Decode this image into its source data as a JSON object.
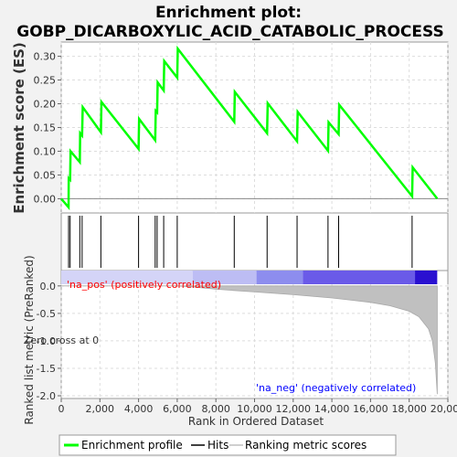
{
  "chart_data": {
    "type": "line",
    "title_line1": "Enrichment plot:",
    "title_line2": "GOBP_DICARBOXYLIC_ACID_CATABOLIC_PROCESS",
    "top_panel": {
      "ylabel": "Enrichment score (ES)",
      "ylim": [
        -0.03,
        0.33
      ],
      "yticks": [
        0.0,
        0.05,
        0.1,
        0.15,
        0.2,
        0.25,
        0.3
      ],
      "ytick_labels": [
        "0.00",
        "0.05",
        "0.10",
        "0.15",
        "0.20",
        "0.25",
        "0.30"
      ],
      "grid": true,
      "series": [
        {
          "name": "Enrichment profile",
          "color": "#00ff00",
          "x": [
            0,
            380,
            390,
            460,
            480,
            960,
            980,
            1080,
            1110,
            2050,
            2080,
            4000,
            4030,
            4860,
            4890,
            4960,
            4990,
            5300,
            5330,
            6000,
            6030,
            8950,
            8980,
            10650,
            10680,
            12200,
            12230,
            13800,
            13830,
            14350,
            14380,
            18150,
            18180,
            19450
          ],
          "y": [
            0.0,
            -0.018,
            0.043,
            0.04,
            0.1,
            0.077,
            0.138,
            0.133,
            0.193,
            0.14,
            0.204,
            0.105,
            0.168,
            0.123,
            0.185,
            0.182,
            0.245,
            0.228,
            0.29,
            0.255,
            0.316,
            0.162,
            0.225,
            0.138,
            0.201,
            0.121,
            0.183,
            0.101,
            0.161,
            0.136,
            0.198,
            0.005,
            0.066,
            0.0
          ]
        }
      ]
    },
    "hits_panel": {
      "name": "Hits",
      "positions": [
        380,
        460,
        960,
        1080,
        2050,
        4000,
        4860,
        4960,
        5300,
        6000,
        8950,
        10650,
        12200,
        13800,
        14350,
        18150
      ]
    },
    "ranking_panel": {
      "name": "Ranking metric scores",
      "ylabel": "Ranked list metric (PreRanked)",
      "xlabel": "Rank in Ordered Dataset",
      "ylim": [
        -2.05,
        0.28
      ],
      "yticks": [
        0.0,
        -0.5,
        -1.0,
        -1.5,
        -2.0
      ],
      "ytick_labels": [
        "0.0",
        "-0.5",
        "-1.0",
        "-1.5",
        "-2.0"
      ],
      "xlim": [
        0,
        20000
      ],
      "xticks": [
        0,
        2000,
        4000,
        6000,
        8000,
        10000,
        12000,
        14000,
        16000,
        18000,
        20000
      ],
      "xtick_labels": [
        "0",
        "2,000",
        "4,000",
        "6,000",
        "8,000",
        "10,000",
        "12,000",
        "14,000",
        "16,000",
        "18,000",
        "20,000"
      ],
      "n_genes": 19450,
      "metric_curve": {
        "rank": [
          0,
          2000,
          4000,
          6000,
          6800,
          8000,
          10000,
          12000,
          14000,
          16000,
          17000,
          18000,
          18500,
          19000,
          19200,
          19350,
          19450
        ],
        "score": [
          0.0,
          0.0,
          0.0,
          0.0,
          -0.02,
          -0.06,
          -0.11,
          -0.16,
          -0.22,
          -0.3,
          -0.36,
          -0.46,
          -0.56,
          -0.78,
          -1.0,
          -1.4,
          -1.97
        ]
      },
      "gradient_segments": [
        {
          "start": 0,
          "end": 6800,
          "color": "#d4d4f7"
        },
        {
          "start": 6800,
          "end": 10100,
          "color": "#bdbdf4"
        },
        {
          "start": 10100,
          "end": 12500,
          "color": "#8d8dee"
        },
        {
          "start": 12500,
          "end": 18300,
          "color": "#6a5ae8"
        },
        {
          "start": 18300,
          "end": 19450,
          "color": "#2a10d0"
        }
      ],
      "pos_label": "'na_pos' (positively correlated)",
      "neg_label": "'na_neg' (negatively correlated)",
      "zero_cross_label": "Zero cross at 0",
      "pos_color": "#ff0000",
      "neg_color": "#0000ff"
    },
    "legend": {
      "placement": "bottom",
      "entries": [
        {
          "name": "Enrichment profile",
          "color": "#00ff00"
        },
        {
          "name": "Hits",
          "color": "#000000"
        },
        {
          "name": "Ranking metric scores",
          "color": "#c0c0c0"
        }
      ]
    }
  }
}
